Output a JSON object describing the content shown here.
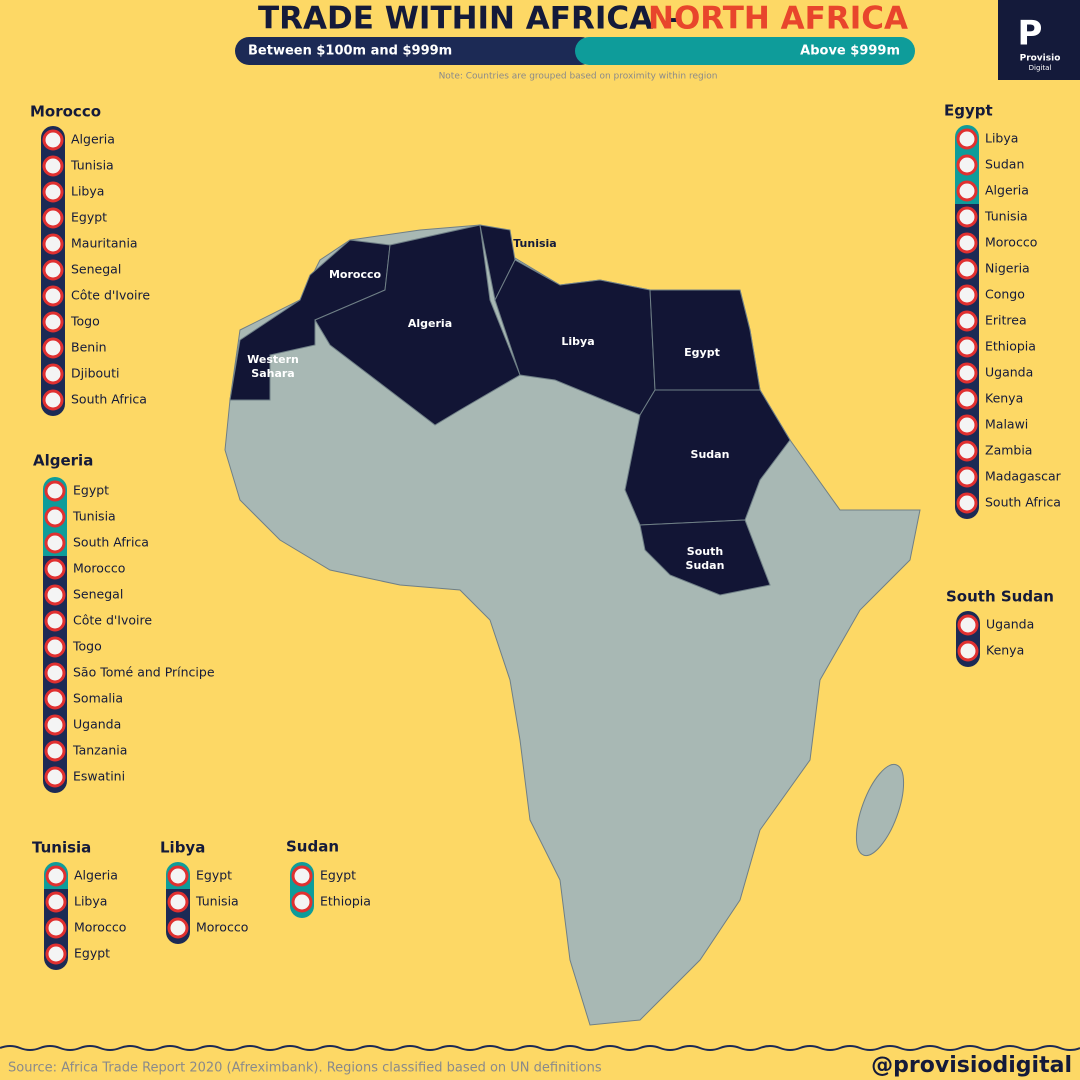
{
  "header": {
    "title_main": "TRADE WITHIN AFRICA –",
    "title_accent": "NORTH AFRICA",
    "note": "Note: Countries are grouped based on proximity within region"
  },
  "legend": [
    {
      "label": "Between $100m and $999m",
      "color": "#1c2a55"
    },
    {
      "label": "Above $999m",
      "color": "#0e9c9a"
    }
  ],
  "logo": {
    "line1": "Provisio",
    "line2": "Digital"
  },
  "map_labels": [
    "Morocco",
    "Tunisia",
    "Algeria",
    "Libya",
    "Egypt",
    "Western Sahara",
    "Sudan",
    "South Sudan"
  ],
  "groups": [
    {
      "country": "Morocco",
      "partners": [
        {
          "name": "Algeria",
          "color": "#1c2a55"
        },
        {
          "name": "Tunisia",
          "color": "#1c2a55"
        },
        {
          "name": "Libya",
          "color": "#1c2a55"
        },
        {
          "name": "Egypt",
          "color": "#1c2a55"
        },
        {
          "name": "Mauritania",
          "color": "#1c2a55"
        },
        {
          "name": "Senegal",
          "color": "#1c2a55"
        },
        {
          "name": "Côte d'Ivoire",
          "color": "#1c2a55"
        },
        {
          "name": "Togo",
          "color": "#1c2a55"
        },
        {
          "name": "Benin",
          "color": "#1c2a55"
        },
        {
          "name": "Djibouti",
          "color": "#1c2a55"
        },
        {
          "name": "South Africa",
          "color": "#1c2a55"
        }
      ]
    },
    {
      "country": "Algeria",
      "partners": [
        {
          "name": "Egypt",
          "color": "#0e9c9a"
        },
        {
          "name": "Tunisia",
          "color": "#0e9c9a"
        },
        {
          "name": "South Africa",
          "color": "#0e9c9a"
        },
        {
          "name": "Morocco",
          "color": "#1c2a55"
        },
        {
          "name": "Senegal",
          "color": "#1c2a55"
        },
        {
          "name": "Côte d'Ivoire",
          "color": "#1c2a55"
        },
        {
          "name": "Togo",
          "color": "#1c2a55"
        },
        {
          "name": "São Tomé and Príncipe",
          "color": "#1c2a55"
        },
        {
          "name": "Somalia",
          "color": "#1c2a55"
        },
        {
          "name": "Uganda",
          "color": "#1c2a55"
        },
        {
          "name": "Tanzania",
          "color": "#1c2a55"
        },
        {
          "name": "Eswatini",
          "color": "#1c2a55"
        }
      ]
    },
    {
      "country": "Egypt",
      "partners": [
        {
          "name": "Libya",
          "color": "#0e9c9a"
        },
        {
          "name": "Sudan",
          "color": "#0e9c9a"
        },
        {
          "name": "Algeria",
          "color": "#0e9c9a"
        },
        {
          "name": "Tunisia",
          "color": "#1c2a55"
        },
        {
          "name": "Morocco",
          "color": "#1c2a55"
        },
        {
          "name": "Nigeria",
          "color": "#1c2a55"
        },
        {
          "name": "Congo",
          "color": "#1c2a55"
        },
        {
          "name": "Eritrea",
          "color": "#1c2a55"
        },
        {
          "name": "Ethiopia",
          "color": "#1c2a55"
        },
        {
          "name": "Uganda",
          "color": "#1c2a55"
        },
        {
          "name": "Kenya",
          "color": "#1c2a55"
        },
        {
          "name": "Malawi",
          "color": "#1c2a55"
        },
        {
          "name": "Zambia",
          "color": "#1c2a55"
        },
        {
          "name": "Madagascar",
          "color": "#1c2a55"
        },
        {
          "name": "South Africa",
          "color": "#1c2a55"
        }
      ]
    },
    {
      "country": "South Sudan",
      "partners": [
        {
          "name": "Uganda",
          "color": "#1c2a55"
        },
        {
          "name": "Kenya",
          "color": "#1c2a55"
        }
      ]
    },
    {
      "country": "Tunisia",
      "partners": [
        {
          "name": "Algeria",
          "color": "#0e9c9a"
        },
        {
          "name": "Libya",
          "color": "#1c2a55"
        },
        {
          "name": "Morocco",
          "color": "#1c2a55"
        },
        {
          "name": "Egypt",
          "color": "#1c2a55"
        }
      ]
    },
    {
      "country": "Libya",
      "partners": [
        {
          "name": "Egypt",
          "color": "#0e9c9a"
        },
        {
          "name": "Tunisia",
          "color": "#1c2a55"
        },
        {
          "name": "Morocco",
          "color": "#1c2a55"
        }
      ]
    },
    {
      "country": "Sudan",
      "partners": [
        {
          "name": "Egypt",
          "color": "#0e9c9a"
        },
        {
          "name": "Ethiopia",
          "color": "#0e9c9a"
        }
      ]
    }
  ],
  "footer": {
    "source": "Source: Africa Trade Report 2020 (Afreximbank). Regions classified based on UN definitions",
    "handle": "@provisiodigital"
  }
}
